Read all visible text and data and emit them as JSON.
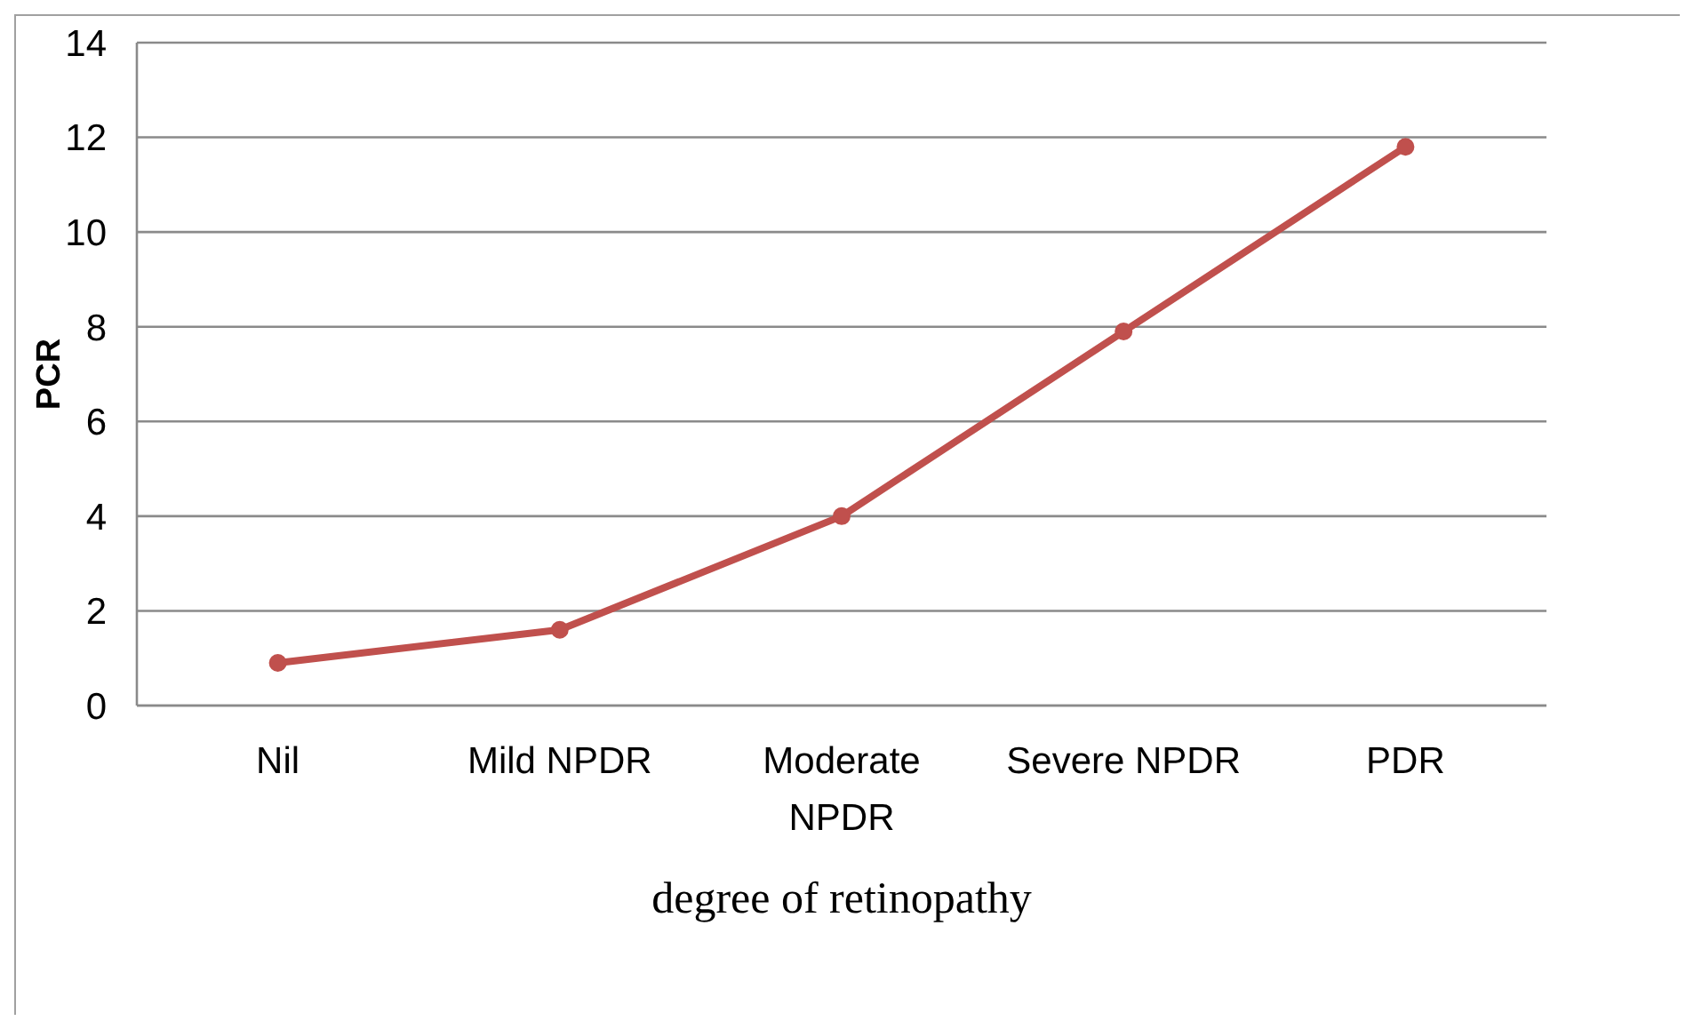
{
  "chart_data": {
    "type": "line",
    "xlabel": "degree of retinopathy",
    "ylabel": "PCR",
    "categories": [
      "Nil",
      "Mild NPDR",
      "Moderate NPDR",
      "Severe NPDR",
      "PDR"
    ],
    "series": [
      {
        "color": "#c0504d",
        "values": [
          0.9,
          1.6,
          4.0,
          7.9,
          11.8
        ]
      }
    ],
    "ylim": [
      0,
      14
    ],
    "yticks": [
      0,
      2,
      4,
      6,
      8,
      10,
      12,
      14
    ],
    "grid": "y",
    "marker": "circle",
    "line_style": "solid"
  }
}
